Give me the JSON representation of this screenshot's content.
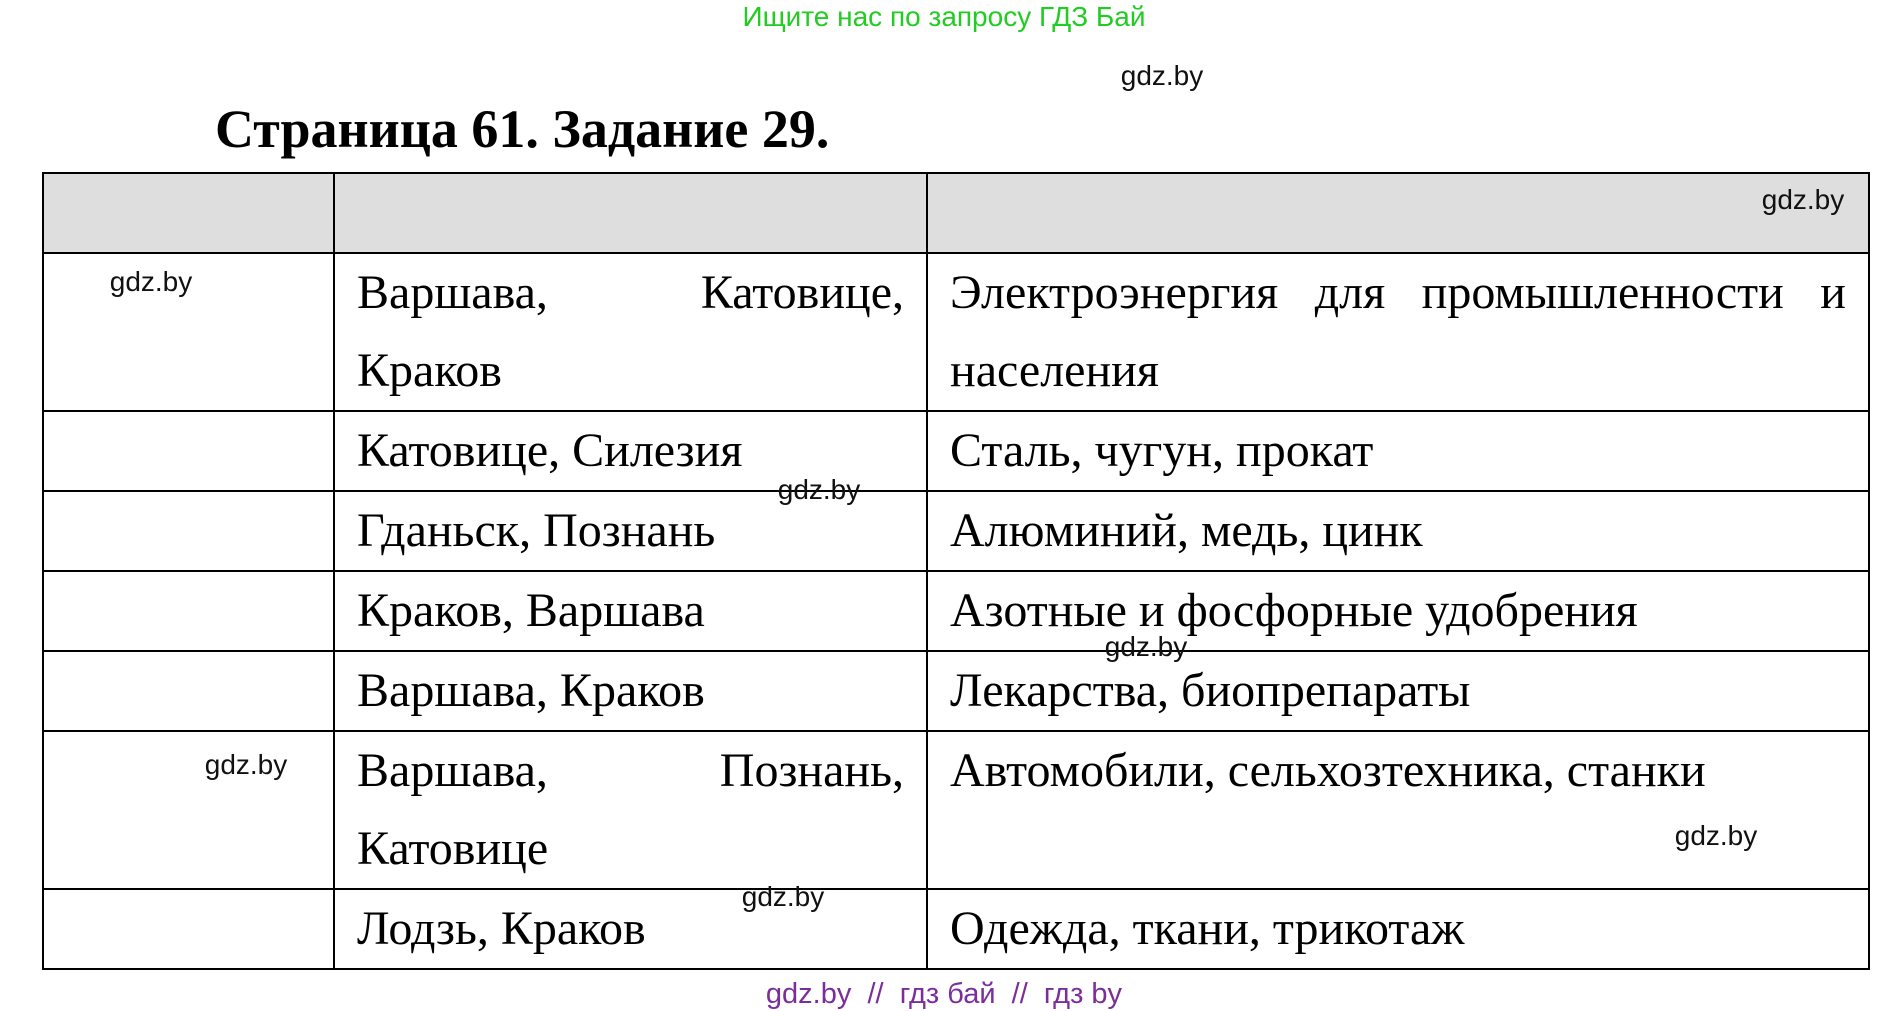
{
  "banner": "Ищите нас по запросу ГДЗ Бай",
  "title": "Страница 61. Задание 29.",
  "table": {
    "header": [
      "",
      "",
      ""
    ],
    "rows": [
      [
        "",
        "Варшава, Катовице, Краков",
        "Электроэнергия для промышленности и населения"
      ],
      [
        "",
        "Катовице, Силезия",
        "Сталь, чугун, прокат"
      ],
      [
        "",
        "Гданьск, Познань",
        "Алюминий, медь, цинк"
      ],
      [
        "",
        "Краков, Варшава",
        "Азотные и фосфорные удобрения"
      ],
      [
        "",
        "Варшава, Краков",
        "Лекарства, биопрепараты"
      ],
      [
        "",
        "Варшава, Познань, Катовице",
        "Автомобили, сельхозтехника, станки"
      ],
      [
        "",
        "Лодзь, Краков",
        "Одежда, ткани, трикотаж"
      ]
    ]
  },
  "watermarks": [
    "gdz.by",
    "gdz.by",
    "gdz.by",
    "gdz.by",
    "gdz.by",
    "gdz.by",
    "gdz.by",
    "gdz.by"
  ],
  "footer": "gdz.by  //  гдз бай  //  гдз by",
  "colors": {
    "banner": "#22cc22",
    "footer": "#7b2d9b",
    "header_bg": "#dedede"
  }
}
